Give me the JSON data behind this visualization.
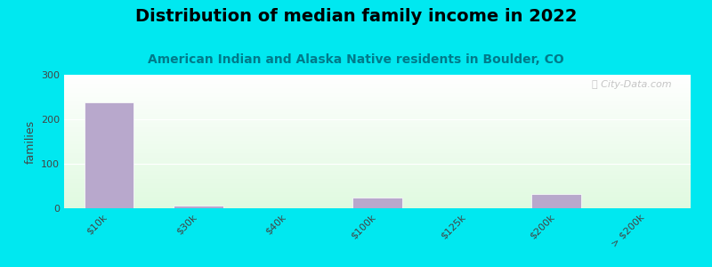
{
  "title": "Distribution of median family income in 2022",
  "subtitle": "American Indian and Alaska Native residents in Boulder, CO",
  "categories": [
    "$10k",
    "$30k",
    "$40k",
    "$100k",
    "$125k",
    "$200k",
    "> $200k"
  ],
  "values": [
    238,
    7,
    0,
    25,
    0,
    33,
    0
  ],
  "bar_color": "#b8a8cc",
  "ylabel": "families",
  "ylim": [
    0,
    300
  ],
  "yticks": [
    0,
    100,
    200,
    300
  ],
  "bg_color": "#00e8f0",
  "title_fontsize": 14,
  "subtitle_fontsize": 10,
  "subtitle_color": "#007a8a",
  "watermark": "ⓘ City-Data.com"
}
